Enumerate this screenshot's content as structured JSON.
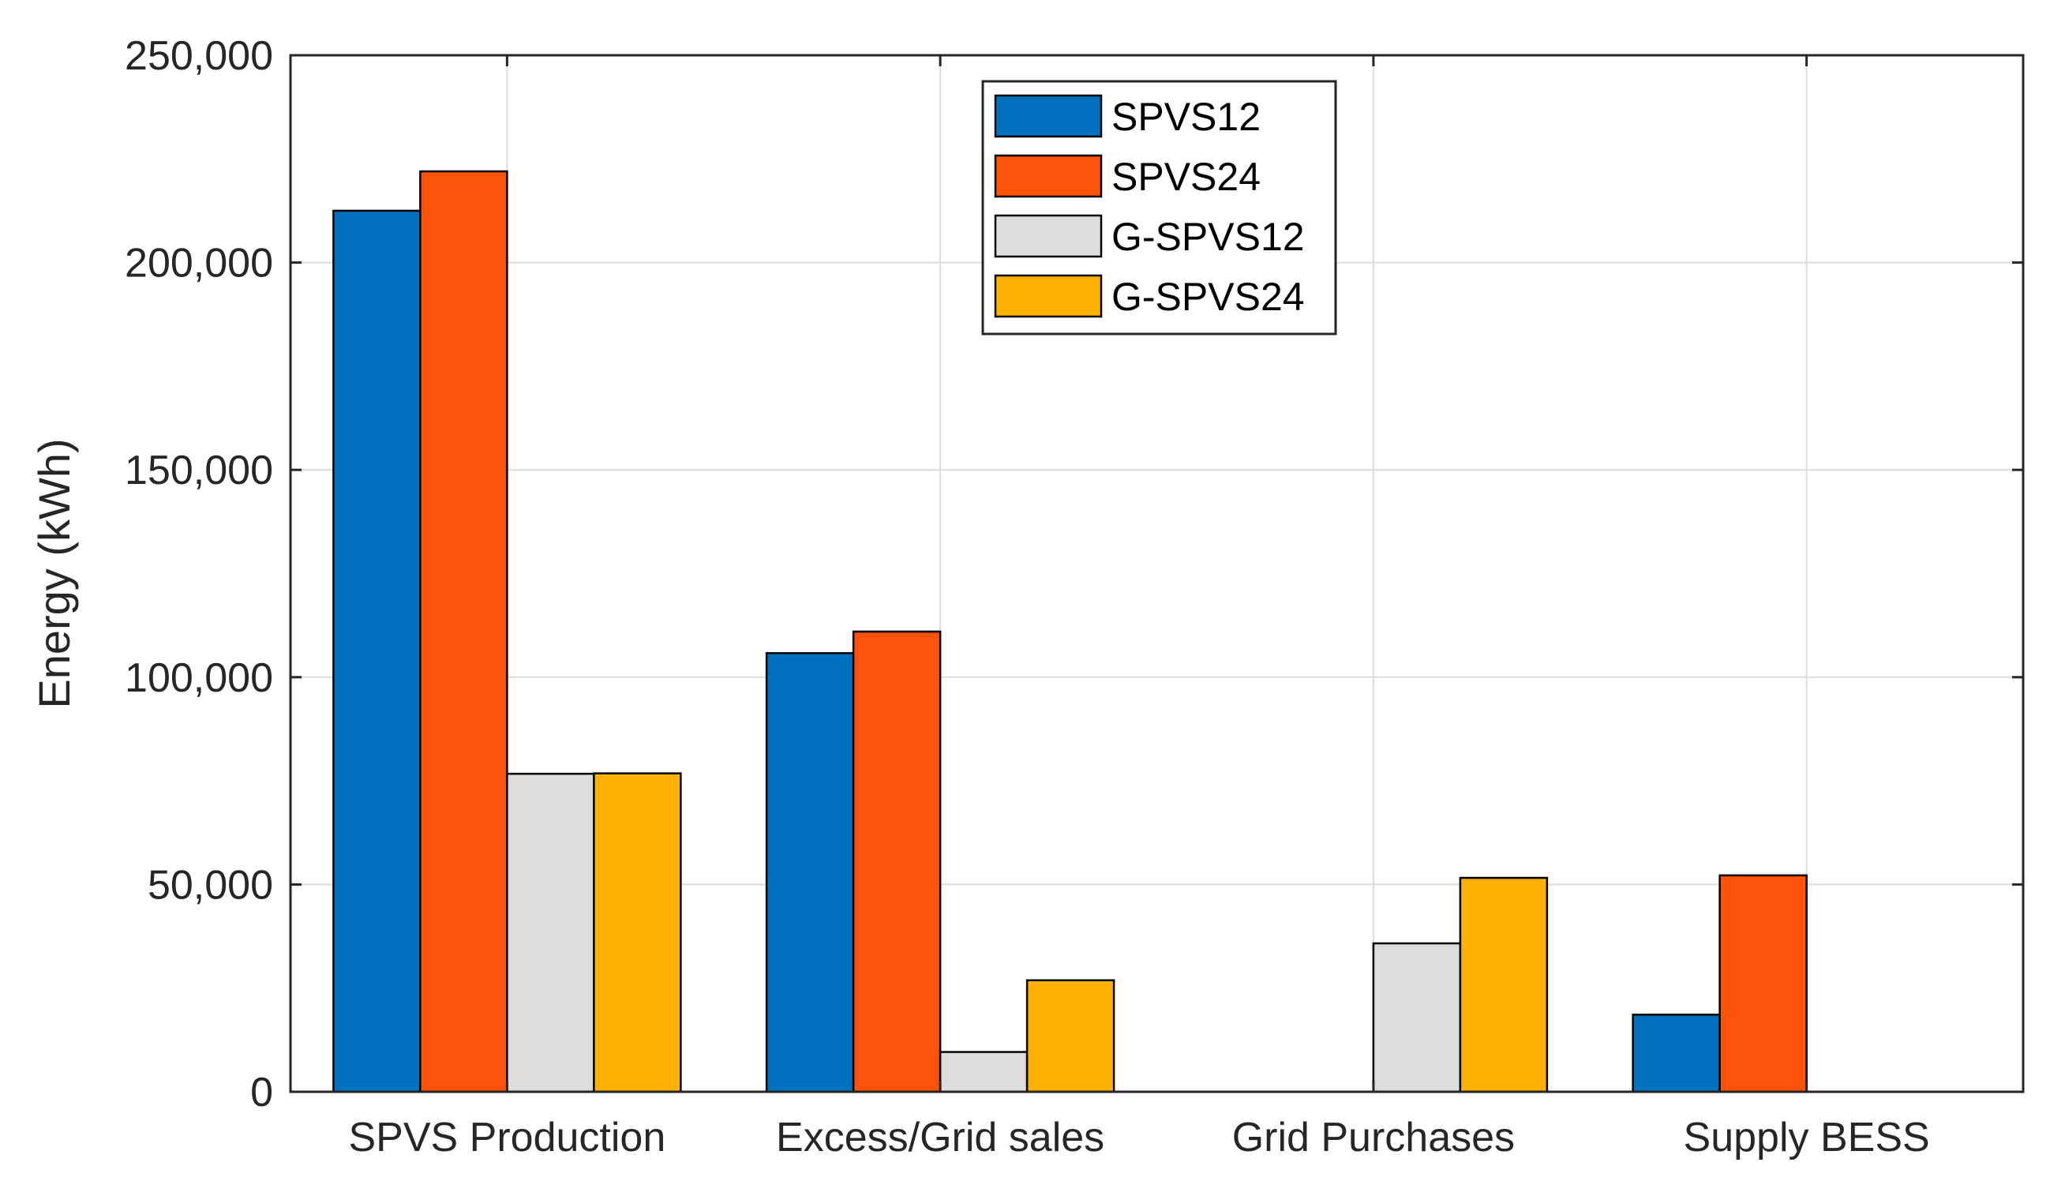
{
  "chart_data": {
    "type": "bar",
    "title": "",
    "xlabel": "",
    "ylabel": "Energy (kWh)",
    "ylim": [
      0,
      250000
    ],
    "yticks": [
      0,
      50000,
      100000,
      150000,
      200000,
      250000
    ],
    "ytick_labels": [
      "0",
      "50,000",
      "100,000",
      "150,000",
      "200,000",
      "250,000"
    ],
    "categories": [
      "SPVS Production",
      "Excess/Grid sales",
      "Grid Purchases",
      "Supply BESS"
    ],
    "grid": true,
    "legend_position": "top-center",
    "series": [
      {
        "name": "SPVS12",
        "color": "#0072BD",
        "values": [
          212500,
          105800,
          0,
          18600
        ]
      },
      {
        "name": "SPVS24",
        "color": "#FD5308",
        "values": [
          222000,
          111000,
          0,
          52200
        ]
      },
      {
        "name": "G-SPVS12",
        "color": "#DDDDDD",
        "values": [
          76700,
          9600,
          35800,
          0
        ]
      },
      {
        "name": "G-SPVS24",
        "color": "#FDB103",
        "values": [
          76800,
          26900,
          51600,
          0
        ]
      }
    ]
  }
}
